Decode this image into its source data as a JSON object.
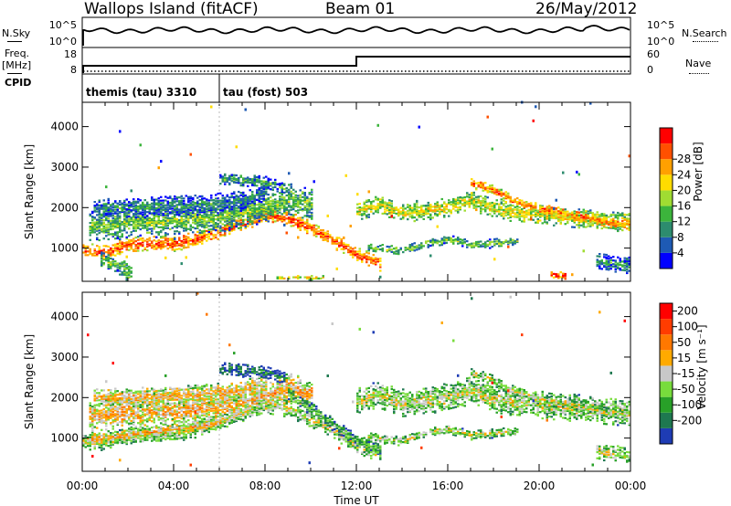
{
  "header": {
    "station": "Wallops Island (fitACF)",
    "beam": "Beam 01",
    "date": "26/May/2012"
  },
  "side_labels": {
    "nsky": "N.Sky",
    "freq": "Freq.",
    "freq_unit": "[MHz]",
    "cpid": "CPID",
    "nsearch": "N.Search",
    "nave": "Nave"
  },
  "nsky_axis": {
    "top": "10^5",
    "bottom": "10^0"
  },
  "nsearch_axis": {
    "top": "10^5",
    "bottom": "10^0"
  },
  "freq_axis": {
    "top": "18",
    "bottom": "8"
  },
  "nave_axis": {
    "top": "60",
    "bottom": "0"
  },
  "cpid": [
    {
      "label": "themis (tau) 3310",
      "start_hour": 0,
      "end_hour": 6
    },
    {
      "label": "tau (fost) 503",
      "start_hour": 6,
      "end_hour": 24
    }
  ],
  "chart_data": [
    {
      "type": "heatmap",
      "title": "Power",
      "ylabel": "Slant Range [km]",
      "ylim": [
        180,
        4600
      ],
      "yticks": [
        1000,
        2000,
        3000,
        4000
      ],
      "xlim_hours": [
        0,
        24
      ],
      "colorbar": {
        "label": "Power [dB]",
        "ticks": [
          "4",
          "8",
          "12",
          "16",
          "20",
          "24",
          "28"
        ],
        "colors": [
          "#0000ff",
          "#1e5ab4",
          "#2d8c6e",
          "#3cb43c",
          "#a0dc32",
          "#ffdc00",
          "#ffa000",
          "#ff5000",
          "#ff0000"
        ]
      },
      "bands": [
        {
          "points": [
            [
              0,
              900
            ],
            [
              1,
              880
            ],
            [
              2,
              1050
            ],
            [
              3,
              1080
            ],
            [
              4,
              1090
            ],
            [
              5,
              1200
            ],
            [
              6,
              1400
            ],
            [
              7,
              1600
            ],
            [
              8,
              1800
            ],
            [
              9,
              1700
            ],
            [
              10,
              1450
            ],
            [
              11,
              1150
            ],
            [
              12,
              800
            ],
            [
              13,
              600
            ]
          ],
          "width": 180,
          "level": 0.85
        },
        {
          "points": [
            [
              0.3,
              1500
            ],
            [
              2,
              1600
            ],
            [
              4,
              1650
            ],
            [
              6,
              1750
            ],
            [
              8,
              2000
            ],
            [
              9,
              2200
            ],
            [
              10,
              2050
            ]
          ],
          "width": 380,
          "level": 0.45
        },
        {
          "points": [
            [
              0.5,
              1950
            ],
            [
              3,
              2000
            ],
            [
              5,
              2050
            ],
            [
              7,
              2150
            ],
            [
              8,
              2350
            ]
          ],
          "width": 250,
          "level": 0.3
        },
        {
          "points": [
            [
              6,
              2700
            ],
            [
              7,
              2650
            ],
            [
              8,
              2600
            ],
            [
              8.8,
              2450
            ]
          ],
          "width": 160,
          "level": 0.35
        },
        {
          "points": [
            [
              12,
              1900
            ],
            [
              13,
              2050
            ],
            [
              14,
              1850
            ],
            [
              15,
              1900
            ],
            [
              16,
              2000
            ],
            [
              17,
              2150
            ],
            [
              18,
              1950
            ],
            [
              19,
              1850
            ],
            [
              20,
              1800
            ],
            [
              21,
              1750
            ],
            [
              22,
              1700
            ],
            [
              23,
              1650
            ],
            [
              24,
              1600
            ]
          ],
          "width": 230,
          "level": 0.6
        },
        {
          "points": [
            [
              17,
              2600
            ],
            [
              18,
              2400
            ],
            [
              19,
              2100
            ],
            [
              20,
              1950
            ],
            [
              21,
              1850
            ],
            [
              22,
              1750
            ],
            [
              23,
              1600
            ],
            [
              24,
              1550
            ]
          ],
          "width": 130,
          "level": 0.8
        },
        {
          "points": [
            [
              12.5,
              1000
            ],
            [
              14,
              900
            ],
            [
              15,
              1100
            ],
            [
              16,
              1200
            ],
            [
              17,
              1050
            ],
            [
              19,
              1150
            ]
          ],
          "width": 110,
          "level": 0.45
        },
        {
          "points": [
            [
              22.5,
              650
            ],
            [
              24,
              550
            ]
          ],
          "width": 200,
          "level": 0.3
        },
        {
          "points": [
            [
              0.8,
              700
            ],
            [
              1.5,
              550
            ],
            [
              2.1,
              350
            ]
          ],
          "width": 220,
          "level": 0.45
        },
        {
          "points": [
            [
              20.5,
              330
            ],
            [
              21.1,
              290
            ]
          ],
          "width": 100,
          "level": 0.92
        },
        {
          "points": [
            [
              8.5,
              250
            ],
            [
              10.5,
              250
            ]
          ],
          "width": 50,
          "level": 0.6
        }
      ],
      "noise_density": 0.004
    },
    {
      "type": "heatmap",
      "title": "Velocity",
      "ylabel": "Slant Range [km]",
      "ylim": [
        180,
        4600
      ],
      "yticks": [
        1000,
        2000,
        3000,
        4000
      ],
      "xlim_hours": [
        0,
        24
      ],
      "xticks": [
        "00:00",
        "04:00",
        "08:00",
        "12:00",
        "16:00",
        "20:00",
        "00:00"
      ],
      "xlabel": "Time UT",
      "colorbar": {
        "label": "Velocity [m s⁻¹]",
        "ticks": [
          "200",
          "100",
          "50",
          "15",
          "-15",
          "-50",
          "-100",
          "-200"
        ],
        "colors": [
          "#1e3cb4",
          "#1e7850",
          "#28a028",
          "#78dc3c",
          "#c8c8c8",
          "#ffaa00",
          "#ff7800",
          "#ff3c00",
          "#ff0000"
        ]
      },
      "bands": [
        {
          "points": [
            [
              0,
              900
            ],
            [
              1,
              880
            ],
            [
              2,
              1050
            ],
            [
              3,
              1080
            ],
            [
              4,
              1090
            ],
            [
              5,
              1200
            ],
            [
              6,
              1400
            ],
            [
              7,
              1600
            ],
            [
              8,
              1800
            ],
            [
              9,
              1700
            ],
            [
              10,
              1450
            ],
            [
              11,
              1150
            ],
            [
              12,
              800
            ],
            [
              13,
              600
            ]
          ],
          "width": 200,
          "level": 0.5
        },
        {
          "points": [
            [
              0.3,
              1500
            ],
            [
              2,
              1600
            ],
            [
              4,
              1650
            ],
            [
              6,
              1750
            ],
            [
              8,
              2000
            ],
            [
              9,
              2200
            ],
            [
              10,
              2050
            ]
          ],
          "width": 380,
          "level": 0.62
        },
        {
          "points": [
            [
              0.5,
              1950
            ],
            [
              3,
              2000
            ],
            [
              5,
              2050
            ],
            [
              7,
              2150
            ],
            [
              8,
              2350
            ]
          ],
          "width": 250,
          "level": 0.62
        },
        {
          "points": [
            [
              6,
              2700
            ],
            [
              7,
              2650
            ],
            [
              8,
              2600
            ],
            [
              8.8,
              2450
            ]
          ],
          "width": 160,
          "level": 0.2
        },
        {
          "points": [
            [
              12,
              1900
            ],
            [
              13,
              2050
            ],
            [
              14,
              1850
            ],
            [
              15,
              1900
            ],
            [
              16,
              2000
            ],
            [
              17,
              2150
            ],
            [
              18,
              1950
            ],
            [
              19,
              1850
            ],
            [
              20,
              1800
            ],
            [
              21,
              1750
            ],
            [
              22,
              1700
            ],
            [
              23,
              1650
            ],
            [
              24,
              1600
            ]
          ],
          "width": 330,
          "level": 0.5
        },
        {
          "points": [
            [
              17,
              2600
            ],
            [
              18,
              2400
            ],
            [
              19,
              2100
            ],
            [
              20,
              1950
            ],
            [
              21,
              1850
            ],
            [
              22,
              1750
            ],
            [
              23,
              1600
            ],
            [
              24,
              1550
            ]
          ],
          "width": 130,
          "level": 0.5
        },
        {
          "points": [
            [
              12.5,
              1000
            ],
            [
              14,
              900
            ],
            [
              15,
              1100
            ],
            [
              16,
              1200
            ],
            [
              17,
              1050
            ],
            [
              19,
              1150
            ]
          ],
          "width": 110,
          "level": 0.5
        },
        {
          "points": [
            [
              22.5,
              650
            ],
            [
              24,
              550
            ]
          ],
          "width": 200,
          "level": 0.5
        },
        {
          "points": [
            [
              0.3,
              950
            ],
            [
              2,
              1050
            ],
            [
              4,
              1200
            ],
            [
              6,
              1350
            ]
          ],
          "width": 150,
          "level": 0.62
        },
        {
          "points": [
            [
              9,
              2100
            ],
            [
              11,
              1300
            ],
            [
              12,
              900
            ],
            [
              13,
              700
            ]
          ],
          "width": 160,
          "level": 0.35
        }
      ],
      "noise_density": 0.004
    }
  ]
}
